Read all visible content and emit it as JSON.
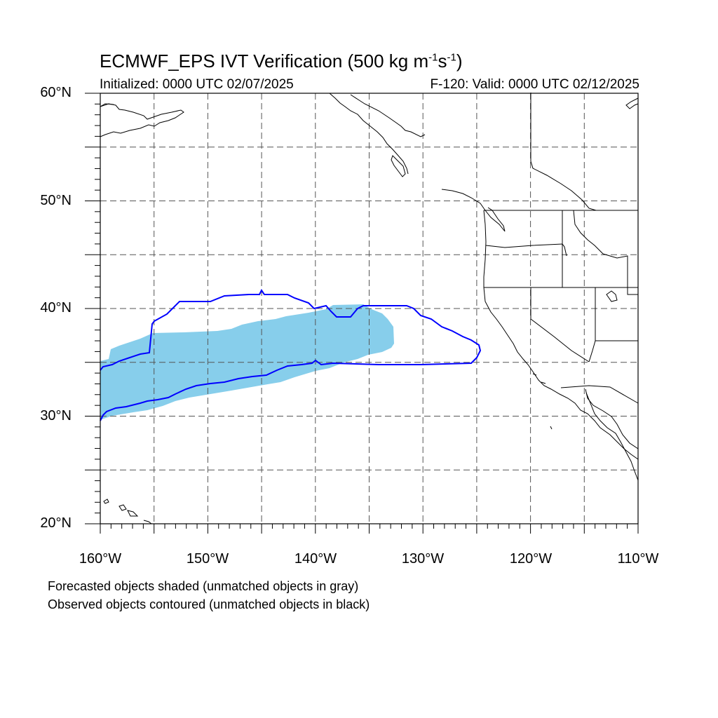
{
  "title": {
    "main": "ECMWF_EPS IVT Verification (500 kg m",
    "exp1": "-1",
    "mid": "s",
    "exp2": "-1",
    "end": ")"
  },
  "subtitle_left": "Initialized: 0000 UTC 02/07/2025",
  "subtitle_right": "F-120: Valid: 0000 UTC 02/12/2025",
  "lat_labels": [
    "60°N",
    "50°N",
    "40°N",
    "30°N",
    "20°N"
  ],
  "lon_labels": [
    "160°W",
    "150°W",
    "140°W",
    "130°W",
    "120°W",
    "110°W"
  ],
  "notes": [
    "Forecasted objects shaded (unmatched objects in gray)",
    "Observed objects contoured (unmatched objects in black)"
  ],
  "map": {
    "lon_range": [
      -160,
      -110
    ],
    "lat_range": [
      20,
      60
    ],
    "grid_lon_step": 5,
    "grid_lat_step": 5,
    "colors": {
      "forecast_fill": "#87ceeb",
      "observed_contour": "#0000ff",
      "coastline": "#000000",
      "grid": "#555555"
    }
  }
}
